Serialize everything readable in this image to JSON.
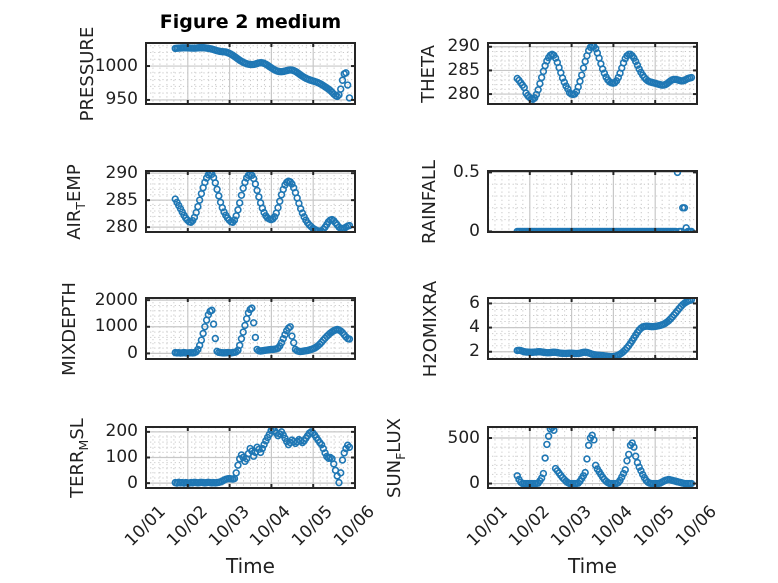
{
  "figure": {
    "title": "Figure 2 medium"
  },
  "colors": {
    "marker": "#1f77b4",
    "spine": "#262626",
    "grid_major": "#c8c8c8",
    "grid_minor": "#c8c8c8",
    "text": "#212121"
  },
  "chart_data": {
    "type": "scatter",
    "marker": "open-circle",
    "xlabel": "Time",
    "x_tick_labels": [
      "10/01",
      "10/02",
      "10/03",
      "10/04",
      "10/05",
      "10/06"
    ],
    "xlim": [
      0,
      5
    ],
    "x_minor_step": 0.16667,
    "x_unit": "days since 10/01 00:00",
    "x_start": 0.7,
    "x_step": 0.0416667,
    "grid": "major solid + minor dotted",
    "legend": "none",
    "plots": [
      {
        "name": "pressure",
        "row": 0,
        "col": 0,
        "ylabel_pre": "PRESSURE",
        "ylabel_sub": "",
        "ylabel_post": "",
        "yticks": [
          950,
          1000
        ],
        "ylim": [
          944,
          1034
        ],
        "yminor": 10,
        "values": [
          1026.0,
          1026.3,
          1026.5,
          1026.7,
          1026.8,
          1026.9,
          1026.9,
          1026.8,
          1026.7,
          1026.6,
          1026.5,
          1026.5,
          1026.6,
          1026.8,
          1027.0,
          1027.1,
          1027.0,
          1026.8,
          1026.5,
          1026.1,
          1025.6,
          1025.0,
          1024.3,
          1023.5,
          1022.7,
          1022.0,
          1021.5,
          1021.2,
          1021.0,
          1020.7,
          1019.8,
          1018.8,
          1017.5,
          1016.0,
          1014.2,
          1012.3,
          1010.4,
          1008.6,
          1007.0,
          1005.6,
          1004.4,
          1003.4,
          1002.8,
          1002.4,
          1002.2,
          1002.4,
          1003.0,
          1003.8,
          1004.6,
          1005.0,
          1004.8,
          1004.0,
          1002.8,
          1001.2,
          999.4,
          997.6,
          995.9,
          994.4,
          993.2,
          992.3,
          991.8,
          991.7,
          992.0,
          992.6,
          993.3,
          993.9,
          994.2,
          994.0,
          993.3,
          992.1,
          990.5,
          988.7,
          986.8,
          985.0,
          983.4,
          982.0,
          980.8,
          979.8,
          978.9,
          978.1,
          977.3,
          976.4,
          975.4,
          974.2,
          972.8,
          971.2,
          969.5,
          967.8,
          966.0,
          963.9,
          961.5,
          958.8,
          956.5,
          955.2,
          957.5,
          966.0,
          979.0,
          988.5,
          990.0,
          972.0,
          953.0
        ]
      },
      {
        "name": "theta",
        "row": 0,
        "col": 1,
        "ylabel_pre": "THETA",
        "ylabel_sub": "",
        "ylabel_post": "",
        "yticks": [
          280,
          285,
          290
        ],
        "ylim": [
          277.9,
          290.8
        ],
        "yminor": 1,
        "values": [
          283.3,
          282.9,
          282.4,
          281.9,
          281.4,
          280.2,
          279.7,
          279.3,
          279.0,
          278.9,
          279.2,
          279.9,
          280.9,
          282.2,
          283.5,
          284.8,
          286.0,
          287.0,
          287.7,
          288.2,
          288.4,
          288.2,
          287.6,
          286.7,
          285.6,
          284.5,
          283.4,
          282.5,
          281.7,
          281.1,
          280.3,
          280.0,
          279.9,
          280.0,
          280.5,
          281.5,
          282.7,
          284.0,
          285.5,
          286.9,
          288.1,
          289.2,
          289.9,
          290.2,
          290.1,
          289.6,
          288.7,
          287.6,
          286.4,
          285.3,
          284.4,
          283.6,
          283.0,
          282.6,
          282.4,
          282.3,
          282.4,
          282.8,
          283.5,
          284.4,
          285.5,
          286.6,
          287.5,
          288.1,
          288.4,
          288.4,
          288.1,
          287.6,
          286.9,
          286.1,
          285.3,
          284.6,
          284.0,
          283.5,
          283.1,
          282.8,
          282.6,
          282.5,
          282.4,
          282.3,
          282.2,
          282.1,
          282.0,
          281.9,
          281.9,
          282.0,
          282.2,
          282.5,
          282.8,
          283.0,
          283.1,
          283.1,
          283.0,
          282.9,
          282.8,
          282.8,
          282.9,
          283.1,
          283.3,
          283.4,
          283.5
        ]
      },
      {
        "name": "air-temp",
        "row": 1,
        "col": 0,
        "ylabel_pre": "AIR",
        "ylabel_sub": "T",
        "ylabel_post": "EMP",
        "yticks": [
          280,
          285,
          290
        ],
        "ylim": [
          279.1,
          290.4
        ],
        "yminor": 1,
        "values": [
          285.2,
          284.6,
          284.0,
          283.4,
          282.8,
          282.2,
          281.7,
          281.3,
          281.0,
          280.9,
          281.2,
          281.8,
          282.7,
          283.8,
          285.0,
          286.2,
          287.3,
          288.3,
          289.1,
          289.7,
          290.0,
          289.8,
          289.2,
          288.2,
          287.0,
          285.8,
          284.6,
          283.6,
          282.8,
          282.2,
          281.7,
          281.3,
          281.0,
          280.9,
          281.3,
          282.1,
          283.2,
          284.5,
          285.9,
          287.2,
          288.3,
          289.1,
          289.6,
          289.8,
          289.6,
          289.0,
          288.0,
          286.8,
          285.6,
          284.5,
          283.5,
          282.7,
          282.1,
          281.7,
          281.5,
          281.4,
          281.5,
          281.9,
          282.6,
          283.6,
          284.8,
          286.0,
          287.0,
          287.8,
          288.3,
          288.5,
          288.4,
          288.0,
          287.3,
          286.4,
          285.4,
          284.4,
          283.4,
          282.6,
          281.9,
          281.3,
          280.8,
          280.4,
          280.1,
          279.8,
          279.6,
          279.4,
          279.3,
          279.2,
          279.3,
          279.6,
          280.0,
          280.5,
          281.0,
          281.3,
          281.4,
          281.2,
          280.8,
          280.4,
          280.0,
          279.8,
          279.7,
          279.8,
          280.0,
          280.2,
          280.3
        ]
      },
      {
        "name": "rainfall",
        "row": 1,
        "col": 1,
        "ylabel_pre": "RAINFALL",
        "ylabel_sub": "",
        "ylabel_post": "",
        "yticks": [
          0,
          0.5
        ],
        "ylim": [
          -0.005,
          0.512
        ],
        "yminor": 0.1,
        "values": [
          0,
          0,
          0,
          0,
          0,
          0,
          0,
          0,
          0,
          0,
          0,
          0,
          0,
          0,
          0,
          0,
          0,
          0,
          0,
          0,
          0,
          0,
          0,
          0,
          0,
          0,
          0,
          0,
          0,
          0,
          0,
          0,
          0,
          0,
          0,
          0,
          0,
          0,
          0,
          0,
          0,
          0,
          0,
          0,
          0,
          0,
          0,
          0,
          0,
          0,
          0,
          0,
          0,
          0,
          0,
          0,
          0,
          0,
          0,
          0,
          0,
          0,
          0,
          0,
          0,
          0,
          0,
          0,
          0,
          0,
          0,
          0,
          0,
          0,
          0,
          0,
          0,
          0,
          0,
          0,
          0,
          0,
          0,
          0,
          0,
          0,
          0,
          0,
          0,
          0,
          0,
          0,
          0.5,
          0,
          0,
          0.2,
          0.2,
          0.03,
          0,
          0,
          0
        ]
      },
      {
        "name": "mixdepth",
        "row": 2,
        "col": 0,
        "ylabel_pre": "MIXDEPTH",
        "ylabel_sub": "",
        "ylabel_post": "",
        "yticks": [
          0,
          1000,
          2000
        ],
        "ylim": [
          -210,
          2080
        ],
        "yminor": 200,
        "values": [
          30,
          20,
          25,
          15,
          20,
          30,
          20,
          15,
          20,
          25,
          20,
          30,
          60,
          150,
          300,
          500,
          750,
          1000,
          1250,
          1450,
          1580,
          1620,
          1100,
          560,
          80,
          40,
          30,
          25,
          20,
          25,
          30,
          25,
          20,
          30,
          40,
          60,
          120,
          300,
          550,
          800,
          1050,
          1300,
          1520,
          1650,
          1700,
          1150,
          600,
          150,
          100,
          90,
          100,
          110,
          120,
          130,
          140,
          150,
          150,
          160,
          170,
          200,
          280,
          400,
          550,
          700,
          850,
          950,
          1000,
          650,
          400,
          150,
          100,
          80,
          70,
          80,
          90,
          100,
          110,
          130,
          150,
          170,
          200,
          240,
          290,
          350,
          420,
          500,
          570,
          640,
          700,
          760,
          810,
          850,
          880,
          900,
          880,
          840,
          780,
          700,
          620,
          560,
          540
        ]
      },
      {
        "name": "h2omixra",
        "row": 2,
        "col": 1,
        "ylabel_pre": "H2OMIXRA",
        "ylabel_sub": "",
        "ylabel_post": "",
        "yticks": [
          2,
          4,
          6
        ],
        "ylim": [
          1.4,
          6.45
        ],
        "yminor": 0.5,
        "values": [
          2.1,
          2.12,
          2.1,
          2.05,
          2.0,
          1.98,
          1.97,
          1.96,
          1.95,
          1.96,
          1.97,
          1.98,
          2.0,
          2.0,
          1.98,
          1.96,
          1.94,
          1.92,
          1.92,
          1.93,
          1.95,
          1.96,
          1.95,
          1.93,
          1.9,
          1.88,
          1.87,
          1.86,
          1.86,
          1.87,
          1.88,
          1.88,
          1.87,
          1.86,
          1.85,
          1.86,
          1.88,
          1.92,
          1.95,
          1.96,
          1.94,
          1.9,
          1.85,
          1.8,
          1.76,
          1.73,
          1.71,
          1.7,
          1.69,
          1.68,
          1.66,
          1.64,
          1.62,
          1.61,
          1.6,
          1.6,
          1.62,
          1.66,
          1.72,
          1.8,
          1.9,
          2.02,
          2.16,
          2.32,
          2.5,
          2.7,
          2.92,
          3.15,
          3.38,
          3.6,
          3.8,
          3.95,
          4.05,
          4.1,
          4.12,
          4.12,
          4.1,
          4.08,
          4.08,
          4.1,
          4.12,
          4.15,
          4.18,
          4.22,
          4.28,
          4.36,
          4.46,
          4.58,
          4.72,
          4.88,
          5.05,
          5.22,
          5.4,
          5.58,
          5.75,
          5.9,
          6.02,
          6.12,
          6.2,
          6.25,
          6.3
        ]
      },
      {
        "name": "terr-msl",
        "row": 3,
        "col": 0,
        "ylabel_pre": "TERR",
        "ylabel_sub": "M",
        "ylabel_post": "SL",
        "yticks": [
          0,
          100,
          200
        ],
        "ylim": [
          -19,
          219
        ],
        "yminor": 20,
        "values": [
          2,
          0,
          3,
          1,
          2,
          0,
          2,
          1,
          0,
          2,
          1,
          3,
          2,
          1,
          2,
          3,
          2,
          1,
          2,
          3,
          2,
          1,
          2,
          1,
          2,
          3,
          5,
          8,
          12,
          15,
          17,
          18,
          17,
          16,
          18,
          40,
          70,
          95,
          110,
          100,
          85,
          95,
          115,
          135,
          125,
          105,
          120,
          140,
          132,
          120,
          135,
          150,
          165,
          178,
          190,
          205,
          212,
          205,
          195,
          185,
          192,
          200,
          188,
          175,
          162,
          150,
          158,
          168,
          162,
          155,
          162,
          170,
          165,
          158,
          165,
          175,
          185,
          195,
          200,
          196,
          188,
          178,
          168,
          158,
          150,
          135,
          118,
          104,
          97,
          100,
          95,
          75,
          50,
          28,
          2,
          40,
          90,
          118,
          135,
          148,
          140
        ]
      },
      {
        "name": "sun-flux",
        "row": 3,
        "col": 1,
        "ylabel_pre": "SUN",
        "ylabel_sub": "F",
        "ylabel_post": "LUX",
        "yticks": [
          0,
          500
        ],
        "ylim": [
          -49,
          621
        ],
        "yminor": 100,
        "values": [
          85,
          45,
          15,
          0,
          0,
          0,
          0,
          0,
          0,
          0,
          0,
          0,
          5,
          30,
          60,
          110,
          280,
          430,
          520,
          600,
          615,
          585,
          165,
          140,
          115,
          90,
          65,
          45,
          25,
          10,
          0,
          0,
          0,
          0,
          0,
          5,
          25,
          55,
          85,
          120,
          270,
          420,
          500,
          530,
          480,
          200,
          160,
          130,
          100,
          70,
          45,
          25,
          10,
          0,
          0,
          0,
          0,
          0,
          10,
          35,
          70,
          110,
          150,
          250,
          320,
          420,
          445,
          400,
          300,
          230,
          180,
          140,
          100,
          65,
          35,
          15,
          5,
          0,
          0,
          0,
          0,
          0,
          5,
          15,
          25,
          35,
          40,
          45,
          40,
          35,
          30,
          25,
          20,
          15,
          10,
          5,
          0,
          0,
          0,
          0,
          0
        ]
      }
    ]
  }
}
